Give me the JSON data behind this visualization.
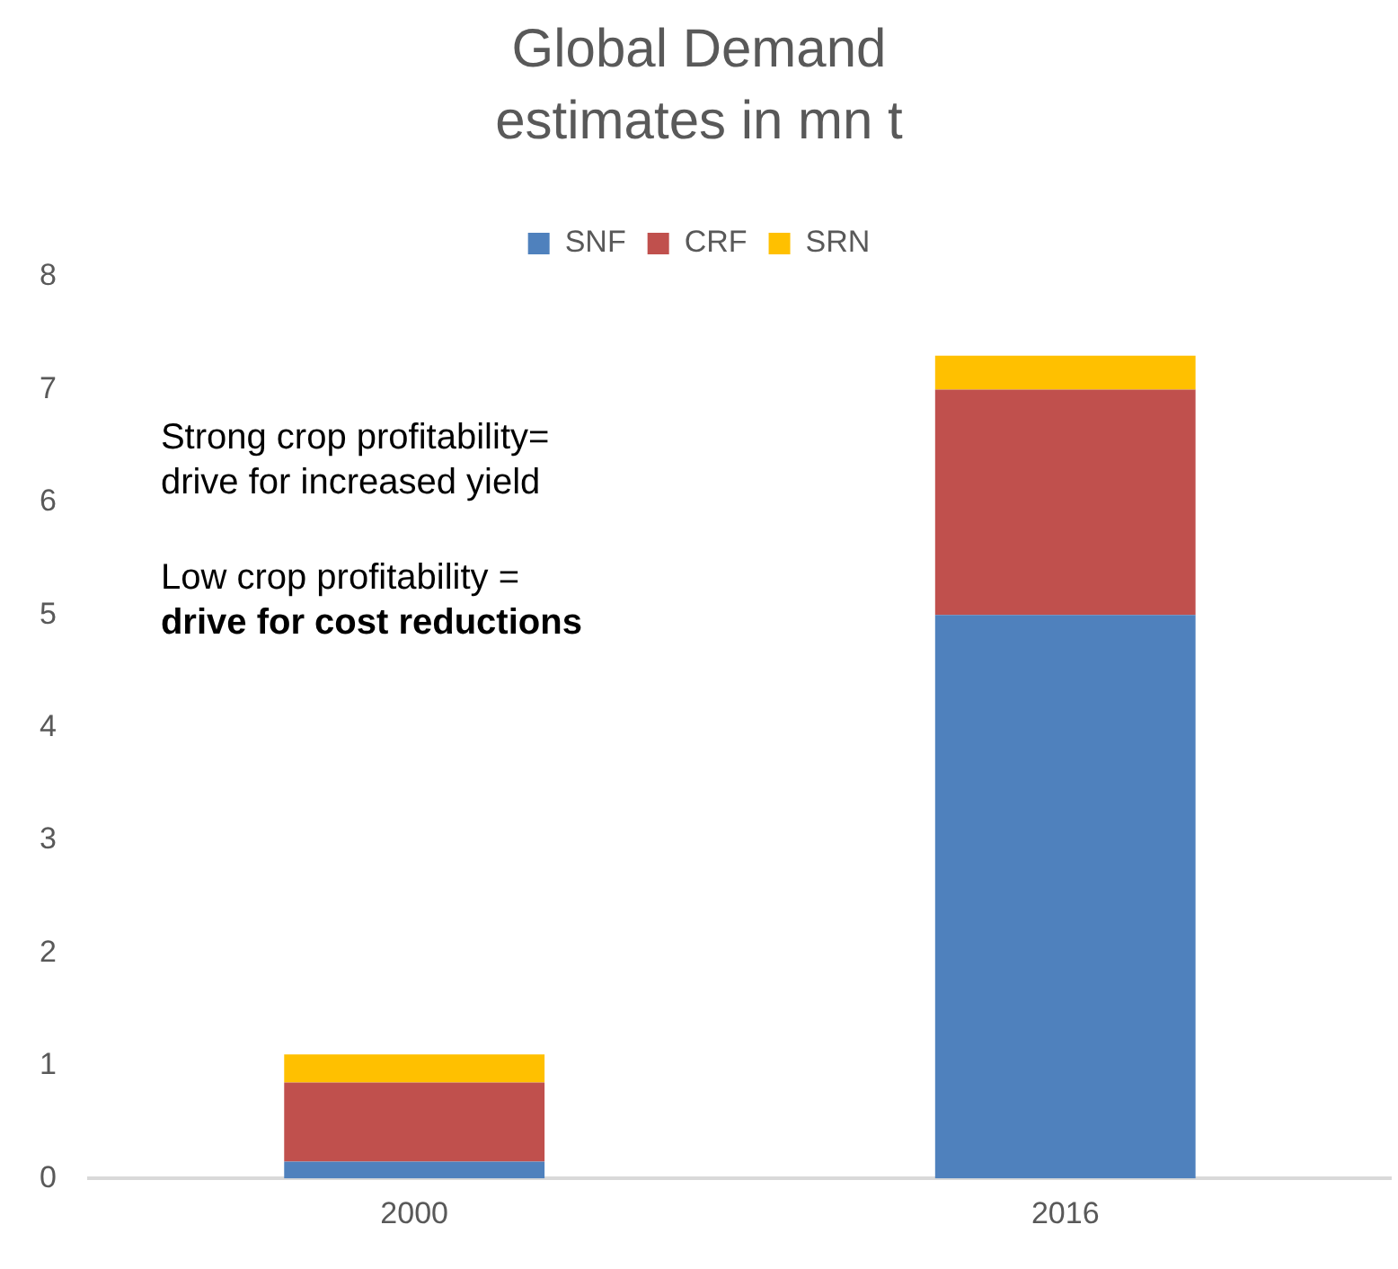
{
  "chart_data": {
    "type": "bar",
    "title": "Global Demand estimates in mn t",
    "categories": [
      "2000",
      "2016"
    ],
    "stacked": true,
    "series": [
      {
        "name": "SNF",
        "color": "#4f81bd",
        "values": [
          0.15,
          5
        ]
      },
      {
        "name": "CRF",
        "color": "#c0504d",
        "values": [
          0.7,
          2
        ]
      },
      {
        "name": "SRN",
        "color": "#ffc000",
        "values": [
          0.25,
          0.3
        ]
      }
    ],
    "ylim": [
      0,
      8
    ],
    "yticks": [
      0,
      1,
      2,
      3,
      4,
      5,
      6,
      7,
      8
    ],
    "grid": false,
    "legend": "top",
    "annotations": [
      "Strong crop profitability=",
      "drive for increased yield",
      "Low crop profitability =",
      "drive for cost reductions"
    ]
  }
}
